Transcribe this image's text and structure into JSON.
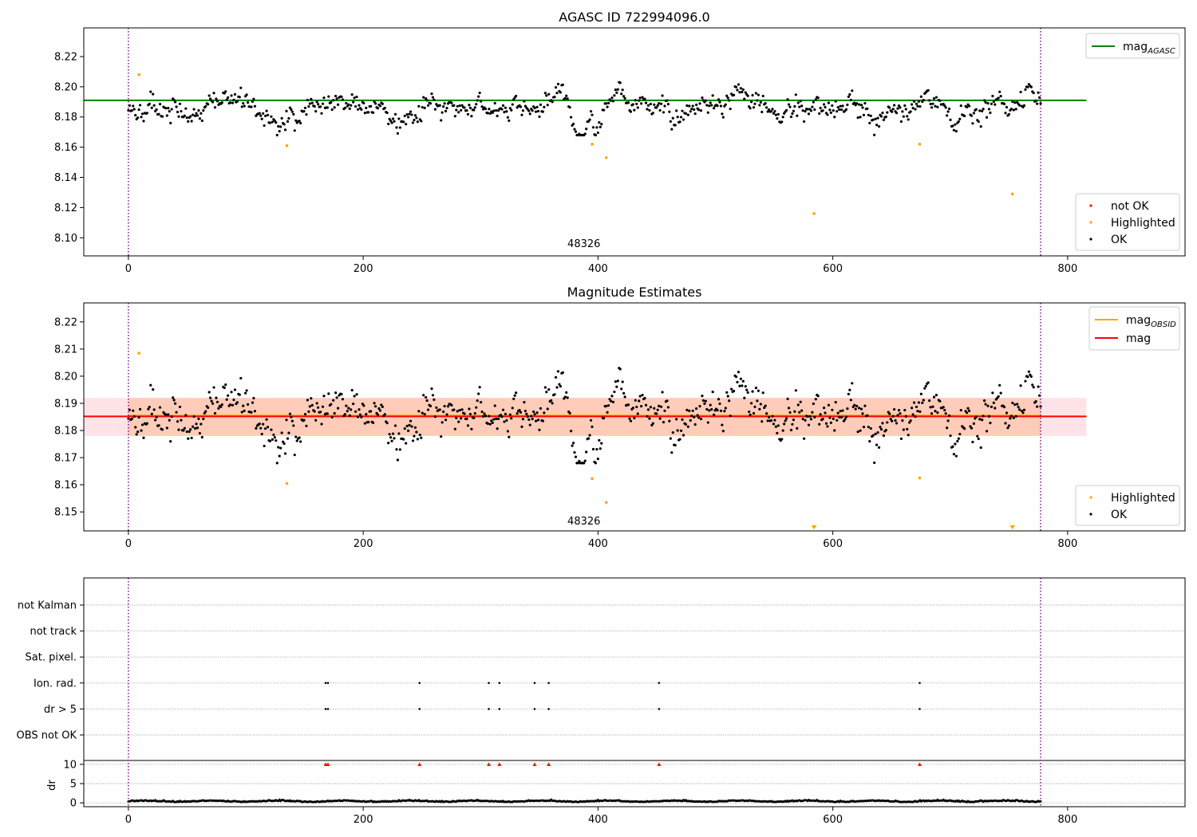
{
  "chart_data": [
    {
      "type": "scatter",
      "title": "AGASC ID 722994096.0",
      "xlim": [
        -38,
        900
      ],
      "ylim": [
        8.088,
        8.239
      ],
      "yticks": [
        8.1,
        8.12,
        8.14,
        8.16,
        8.18,
        8.2,
        8.22
      ],
      "xticks": [
        0,
        200,
        400,
        600,
        800
      ],
      "reference_lines": [
        {
          "name": "mag_AGASC",
          "y": 8.191,
          "x_range": [
            -38,
            816
          ],
          "color": "#008000"
        }
      ],
      "vlines": [
        0,
        777
      ],
      "annotation": {
        "text": "48326",
        "x": 388,
        "y": 8.096
      },
      "legend_lines": [
        {
          "label": "mag",
          "sub": "AGASC",
          "color": "#008000"
        }
      ],
      "legend_points": [
        {
          "label": "not OK",
          "color": "#ff0000"
        },
        {
          "label": "Highlighted",
          "color": "#ffa500"
        },
        {
          "label": "OK",
          "color": "#000000"
        }
      ],
      "highlighted_points": [
        {
          "x": 9,
          "y": 8.208
        },
        {
          "x": 135,
          "y": 8.161
        },
        {
          "x": 395,
          "y": 8.162
        },
        {
          "x": 407,
          "y": 8.153
        },
        {
          "x": 584,
          "y": 8.116
        },
        {
          "x": 674,
          "y": 8.162
        },
        {
          "x": 753,
          "y": 8.129
        }
      ],
      "ok_series": {
        "x_range": [
          0,
          777
        ],
        "count": 780,
        "mean": 8.186,
        "typical_range": [
          8.168,
          8.203
        ]
      }
    },
    {
      "type": "scatter",
      "title": "Magnitude Estimates",
      "xlim": [
        -38,
        900
      ],
      "ylim": [
        8.143,
        8.227
      ],
      "yticks": [
        8.15,
        8.16,
        8.17,
        8.18,
        8.19,
        8.2,
        8.21,
        8.22
      ],
      "xticks": [
        0,
        200,
        400,
        600,
        800
      ],
      "bands": [
        {
          "y_range": [
            8.178,
            8.192
          ],
          "x_range": [
            -38,
            816
          ],
          "color": "#ffc0cb",
          "opacity": 0.45
        },
        {
          "y_range": [
            8.178,
            8.192
          ],
          "x_range": [
            0,
            777
          ],
          "color": "#ffa060",
          "opacity": 0.35
        }
      ],
      "reference_lines": [
        {
          "name": "mag_OBSID",
          "y": 8.1855,
          "x_range": [
            0,
            777
          ],
          "color": "#ffa500"
        },
        {
          "name": "mag",
          "y": 8.1852,
          "x_range": [
            -38,
            816
          ],
          "color": "#ff0000"
        }
      ],
      "vlines": [
        0,
        777
      ],
      "annotation": {
        "text": "48326",
        "x": 388,
        "y": 8.1465
      },
      "legend_lines": [
        {
          "label": "mag",
          "sub": "OBSID",
          "color": "#ffa500"
        },
        {
          "label": "mag",
          "sub": "",
          "color": "#ff0000"
        }
      ],
      "legend_points": [
        {
          "label": "Highlighted",
          "color": "#ffa500"
        },
        {
          "label": "OK",
          "color": "#000000"
        }
      ],
      "highlighted_points": [
        {
          "x": 9,
          "y": 8.2085
        },
        {
          "x": 135,
          "y": 8.1605
        },
        {
          "x": 395,
          "y": 8.1623
        },
        {
          "x": 407,
          "y": 8.1535
        },
        {
          "x": 674,
          "y": 8.1625
        }
      ],
      "offscale_markers": [
        {
          "x": 584
        },
        {
          "x": 753
        }
      ],
      "ok_series": {
        "x_range": [
          0,
          777
        ],
        "count": 780,
        "mean": 8.186,
        "typical_range": [
          8.168,
          8.203
        ]
      }
    },
    {
      "type": "scatter",
      "title": "",
      "xlim": [
        -38,
        900
      ],
      "xticks": [
        0,
        200,
        400,
        600,
        800
      ],
      "flag_rows": [
        "not Kalman",
        "not track",
        "Sat. pixel.",
        "Ion. rad.",
        "dr > 5",
        "OBS not OK"
      ],
      "flag_points": {
        "Ion. rad.": [
          168,
          170,
          248,
          307,
          316,
          346,
          358,
          452,
          674
        ],
        "dr > 5": [
          168,
          170,
          248,
          307,
          316,
          346,
          358,
          452,
          674
        ]
      },
      "dr_axis": {
        "label": "dr",
        "yticks": [
          0,
          5,
          10
        ],
        "ylim": [
          -1,
          11
        ]
      },
      "dr_clipped_markers": [
        168,
        170,
        248,
        307,
        316,
        346,
        358,
        452,
        674
      ],
      "vlines": [
        0,
        777
      ]
    }
  ]
}
